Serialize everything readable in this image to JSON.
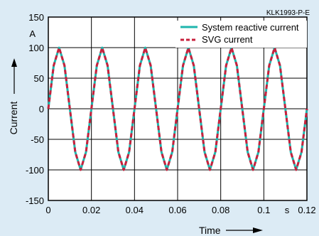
{
  "chart_data": {
    "type": "line",
    "code": "KLK1993-P-E",
    "ylabel": "Current",
    "xlabel": "Time",
    "yunit": "A",
    "xunit": "s",
    "xlim": [
      0,
      0.12
    ],
    "ylim": [
      -150,
      150
    ],
    "xticks": [
      0,
      0.02,
      0.04,
      0.06,
      0.08,
      0.1,
      0.12
    ],
    "xtick_labels": [
      "0",
      "0.02",
      "0.04",
      "0.06",
      "0.08",
      "0.1",
      "0.12"
    ],
    "yticks": [
      150,
      100,
      50,
      0,
      -50,
      -100,
      -150
    ],
    "ytick_labels": [
      "150",
      "100",
      "50",
      "0",
      "-50",
      "-100",
      "-150"
    ],
    "grid": true,
    "legend_position": "top-right",
    "series": [
      {
        "name": "System reactive current",
        "color": "#1fb5ad",
        "style": "solid",
        "x": [
          0,
          0.0025,
          0.005,
          0.0075,
          0.01,
          0.0125,
          0.015,
          0.0175,
          0.02,
          0.0225,
          0.025,
          0.0275,
          0.03,
          0.0325,
          0.035,
          0.0375,
          0.04,
          0.0425,
          0.045,
          0.0475,
          0.05,
          0.0525,
          0.055,
          0.0575,
          0.06,
          0.0625,
          0.065,
          0.0675,
          0.07,
          0.0725,
          0.075,
          0.0775,
          0.08,
          0.0825,
          0.085,
          0.0875,
          0.09,
          0.0925,
          0.095,
          0.0975,
          0.1,
          0.1025,
          0.105,
          0.1075,
          0.11,
          0.1125,
          0.115,
          0.1175,
          0.12
        ],
        "y": [
          0,
          70.7,
          100,
          70.7,
          0,
          -70.7,
          -100,
          -70.7,
          0,
          70.7,
          100,
          70.7,
          0,
          -70.7,
          -100,
          -70.7,
          0,
          70.7,
          100,
          70.7,
          0,
          -70.7,
          -100,
          -70.7,
          0,
          70.7,
          100,
          70.7,
          0,
          -70.7,
          -100,
          -70.7,
          0,
          70.7,
          100,
          70.7,
          0,
          -70.7,
          -100,
          -70.7,
          0,
          70.7,
          100,
          70.7,
          0,
          -70.7,
          -100,
          -70.7,
          0
        ]
      },
      {
        "name": "SVG current",
        "color": "#c8203c",
        "style": "dashed",
        "x": [
          0,
          0.0025,
          0.005,
          0.0075,
          0.01,
          0.0125,
          0.015,
          0.0175,
          0.02,
          0.0225,
          0.025,
          0.0275,
          0.03,
          0.0325,
          0.035,
          0.0375,
          0.04,
          0.0425,
          0.045,
          0.0475,
          0.05,
          0.0525,
          0.055,
          0.0575,
          0.06,
          0.0625,
          0.065,
          0.0675,
          0.07,
          0.0725,
          0.075,
          0.0775,
          0.08,
          0.0825,
          0.085,
          0.0875,
          0.09,
          0.0925,
          0.095,
          0.0975,
          0.1,
          0.1025,
          0.105,
          0.1075,
          0.11,
          0.1125,
          0.115,
          0.1175,
          0.12
        ],
        "y": [
          0,
          70.7,
          100,
          70.7,
          0,
          -70.7,
          -100,
          -70.7,
          0,
          70.7,
          100,
          70.7,
          0,
          -70.7,
          -100,
          -70.7,
          0,
          70.7,
          100,
          70.7,
          0,
          -70.7,
          -100,
          -70.7,
          0,
          70.7,
          100,
          70.7,
          0,
          -70.7,
          -100,
          -70.7,
          0,
          70.7,
          100,
          70.7,
          0,
          -70.7,
          -100,
          -70.7,
          0,
          70.7,
          100,
          70.7,
          0,
          -70.7,
          -100,
          -70.7,
          0
        ]
      }
    ]
  }
}
